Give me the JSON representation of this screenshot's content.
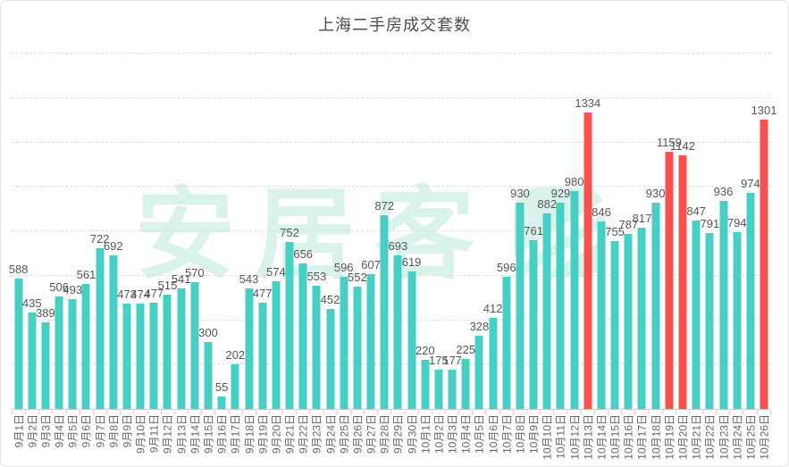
{
  "title": "上海二手房成交套数",
  "watermark": {
    "text": "安居客"
  },
  "colors": {
    "bar": "#45cfc5",
    "highlight": "#f9514e",
    "value_label": "#565656",
    "axis": "#cccccc",
    "grid": "#dedede",
    "watermark": "#d9f2ec",
    "title": "#4c4c4c"
  },
  "chart_data": {
    "type": "bar",
    "title": "上海二手房成交套数",
    "xlabel": "",
    "ylabel": "",
    "ylim": [
      0,
      1650
    ],
    "grid": "horizontal dashed gridlines every 200 units, no y-axis tick labels",
    "legend": "none",
    "x_tick_rotation": 90,
    "categories": [
      "9月1日",
      "9月2日",
      "9月3日",
      "9月4日",
      "9月5日",
      "9月6日",
      "9月7日",
      "9月8日",
      "9月9日",
      "9月10日",
      "9月11日",
      "9月12日",
      "9月13日",
      "9月14日",
      "9月15日",
      "9月16日",
      "9月17日",
      "9月18日",
      "9月19日",
      "9月20日",
      "9月21日",
      "9月22日",
      "9月23日",
      "9月24日",
      "9月25日",
      "9月26日",
      "9月27日",
      "9月28日",
      "9月29日",
      "9月30日",
      "10月1日",
      "10月2日",
      "10月3日",
      "10月4日",
      "10月5日",
      "10月6日",
      "10月7日",
      "10月8日",
      "10月9日",
      "10月10日",
      "10月11日",
      "10月12日",
      "10月13日",
      "10月14日",
      "10月15日",
      "10月16日",
      "10月17日",
      "10月18日",
      "10月19日",
      "10月20日",
      "10月21日",
      "10月22日",
      "10月23日",
      "10月24日",
      "10月25日",
      "10月26日"
    ],
    "values": [
      588,
      435,
      389,
      506,
      493,
      561,
      722,
      692,
      473,
      474,
      477,
      515,
      541,
      570,
      300,
      55,
      202,
      543,
      477,
      574,
      752,
      656,
      553,
      452,
      596,
      552,
      607,
      872,
      693,
      619,
      220,
      175,
      177,
      225,
      328,
      412,
      596,
      930,
      761,
      882,
      929,
      980,
      1334,
      846,
      755,
      787,
      817,
      930,
      1159,
      1142,
      847,
      791,
      936,
      794,
      974,
      1301
    ],
    "highlight_dates": [
      "10月13日",
      "10月19日",
      "10月20日",
      "10月26日"
    ],
    "highlight_values": [
      1334,
      1159,
      1142,
      1301
    ]
  }
}
